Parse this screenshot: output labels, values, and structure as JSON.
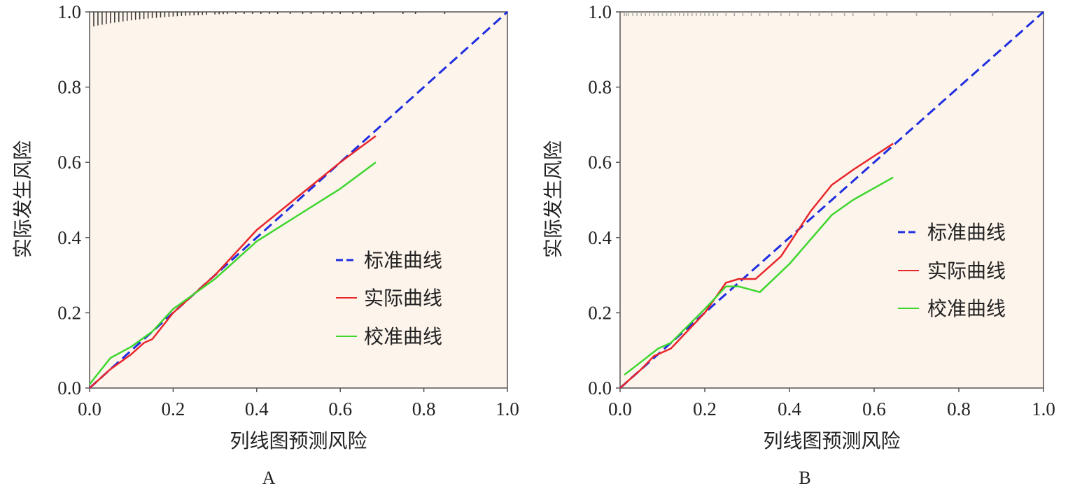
{
  "chart_data": [
    {
      "type": "line",
      "panel_label": "A",
      "xlabel": "列线图预测风险",
      "ylabel": "实际发生风险",
      "xlim": [
        0,
        1
      ],
      "ylim": [
        0,
        1
      ],
      "xticks": [
        "0.0",
        "0.2",
        "0.4",
        "0.6",
        "0.8",
        "1.0"
      ],
      "yticks": [
        "0.0",
        "0.2",
        "0.4",
        "0.6",
        "0.8",
        "1.0"
      ],
      "legend_position": "right-center",
      "series": [
        {
          "name": "标准曲线",
          "color": "#1f2ee0",
          "style": "dashed",
          "points": [
            [
              0,
              0
            ],
            [
              1,
              1
            ]
          ]
        },
        {
          "name": "实际曲线",
          "color": "#e8262a",
          "style": "solid",
          "points": [
            [
              0,
              0
            ],
            [
              0.05,
              0.05
            ],
            [
              0.1,
              0.09
            ],
            [
              0.13,
              0.12
            ],
            [
              0.15,
              0.13
            ],
            [
              0.2,
              0.2
            ],
            [
              0.3,
              0.3
            ],
            [
              0.4,
              0.42
            ],
            [
              0.5,
              0.51
            ],
            [
              0.6,
              0.6
            ],
            [
              0.685,
              0.67
            ]
          ]
        },
        {
          "name": "校准曲线",
          "color": "#3ed62e",
          "style": "solid",
          "points": [
            [
              0,
              0.01
            ],
            [
              0.05,
              0.08
            ],
            [
              0.1,
              0.11
            ],
            [
              0.15,
              0.15
            ],
            [
              0.2,
              0.21
            ],
            [
              0.3,
              0.29
            ],
            [
              0.4,
              0.39
            ],
            [
              0.5,
              0.46
            ],
            [
              0.6,
              0.53
            ],
            [
              0.685,
              0.6
            ]
          ]
        }
      ],
      "rug": {
        "color": "#333333",
        "values": [
          0.01,
          0.02,
          0.03,
          0.04,
          0.05,
          0.06,
          0.07,
          0.08,
          0.09,
          0.1,
          0.11,
          0.12,
          0.13,
          0.14,
          0.15,
          0.16,
          0.17,
          0.18,
          0.19,
          0.2,
          0.21,
          0.22,
          0.23,
          0.24,
          0.25,
          0.26,
          0.27,
          0.28,
          0.3,
          0.31,
          0.32,
          0.33,
          0.35,
          0.37,
          0.39,
          0.41,
          0.43,
          0.45,
          0.48,
          0.51,
          0.53,
          0.56,
          0.58,
          0.6,
          0.63,
          0.65,
          0.68,
          0.75,
          0.78,
          0.85
        ]
      }
    },
    {
      "type": "line",
      "panel_label": "B",
      "xlabel": "列线图预测风险",
      "ylabel": "实际发生风险",
      "xlim": [
        0,
        1
      ],
      "ylim": [
        0,
        1
      ],
      "xticks": [
        "0.0",
        "0.2",
        "0.4",
        "0.6",
        "0.8",
        "1.0"
      ],
      "yticks": [
        "0.0",
        "0.2",
        "0.4",
        "0.6",
        "0.8",
        "1.0"
      ],
      "legend_position": "right-center",
      "series": [
        {
          "name": "标准曲线",
          "color": "#1f2ee0",
          "style": "dashed",
          "points": [
            [
              0,
              0
            ],
            [
              1,
              1
            ]
          ]
        },
        {
          "name": "实际曲线",
          "color": "#e8262a",
          "style": "solid",
          "points": [
            [
              0,
              0
            ],
            [
              0.05,
              0.05
            ],
            [
              0.08,
              0.085
            ],
            [
              0.12,
              0.105
            ],
            [
              0.2,
              0.2
            ],
            [
              0.25,
              0.28
            ],
            [
              0.28,
              0.29
            ],
            [
              0.32,
              0.29
            ],
            [
              0.38,
              0.35
            ],
            [
              0.45,
              0.47
            ],
            [
              0.5,
              0.54
            ],
            [
              0.55,
              0.58
            ],
            [
              0.645,
              0.65
            ]
          ]
        },
        {
          "name": "校准曲线",
          "color": "#3ed62e",
          "style": "solid",
          "points": [
            [
              0.01,
              0.035
            ],
            [
              0.05,
              0.07
            ],
            [
              0.09,
              0.105
            ],
            [
              0.12,
              0.12
            ],
            [
              0.2,
              0.21
            ],
            [
              0.25,
              0.27
            ],
            [
              0.28,
              0.27
            ],
            [
              0.33,
              0.255
            ],
            [
              0.4,
              0.33
            ],
            [
              0.5,
              0.46
            ],
            [
              0.55,
              0.5
            ],
            [
              0.645,
              0.56
            ]
          ]
        }
      ],
      "rug": {
        "color": "#aaaaaa",
        "values": [
          0.01,
          0.015,
          0.02,
          0.03,
          0.04,
          0.05,
          0.06,
          0.07,
          0.08,
          0.09,
          0.1,
          0.11,
          0.12,
          0.13,
          0.14,
          0.15,
          0.16,
          0.17,
          0.18,
          0.19,
          0.2,
          0.21,
          0.22,
          0.23,
          0.25,
          0.27,
          0.29,
          0.31,
          0.33,
          0.35,
          0.38,
          0.4,
          0.42,
          0.45,
          0.47,
          0.5,
          0.53,
          0.55,
          0.6,
          0.63,
          0.7,
          0.78,
          0.88
        ]
      }
    }
  ]
}
